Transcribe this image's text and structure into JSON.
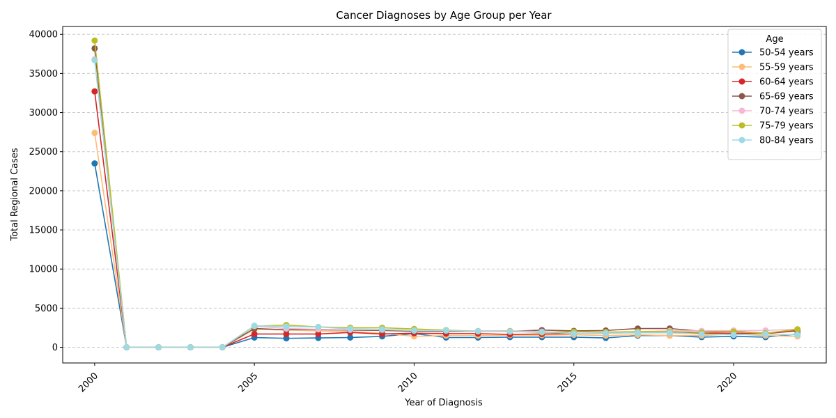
{
  "chart_data": {
    "type": "line",
    "title": "Cancer Diagnoses by Age Group per Year",
    "xlabel": "Year of Diagnosis",
    "ylabel": "Total Regional Cases",
    "x": [
      2000,
      2001,
      2002,
      2003,
      2004,
      2005,
      2006,
      2007,
      2008,
      2009,
      2010,
      2011,
      2012,
      2013,
      2014,
      2015,
      2016,
      2017,
      2018,
      2019,
      2020,
      2021,
      2022
    ],
    "xticks": [
      "2000",
      "2005",
      "2010",
      "2015",
      "2020"
    ],
    "xtick_values": [
      2000,
      2005,
      2010,
      2015,
      2020
    ],
    "yticks": [
      "0",
      "5000",
      "10000",
      "15000",
      "20000",
      "25000",
      "30000",
      "35000",
      "40000"
    ],
    "ytick_values": [
      0,
      5000,
      10000,
      15000,
      20000,
      25000,
      30000,
      35000,
      40000
    ],
    "xlim": [
      1999.0,
      2022.9
    ],
    "ylim": [
      -2000,
      41000
    ],
    "grid": "horizontal-dashed",
    "legend_title": "Age",
    "legend_position": "top-right",
    "series": [
      {
        "name": "50-54 years",
        "color": "#1f77b4",
        "values": [
          23500,
          0,
          0,
          0,
          0,
          1250,
          1150,
          1200,
          1250,
          1400,
          1750,
          1250,
          1250,
          1300,
          1300,
          1300,
          1200,
          1500,
          1500,
          1300,
          1400,
          1300,
          1700
        ]
      },
      {
        "name": "55-59 years",
        "color": "#ffbb78",
        "values": [
          27400,
          0,
          0,
          0,
          0,
          2300,
          2200,
          2100,
          2000,
          1800,
          1400,
          1500,
          1500,
          1550,
          1550,
          1600,
          1500,
          1600,
          1500,
          1500,
          1700,
          1500,
          1400
        ]
      },
      {
        "name": "60-64 years",
        "color": "#d62728",
        "values": [
          32700,
          0,
          0,
          0,
          0,
          1700,
          1700,
          1700,
          1900,
          1700,
          1800,
          1750,
          1750,
          1650,
          1700,
          1750,
          1800,
          1900,
          1850,
          1800,
          1800,
          1750,
          2100
        ]
      },
      {
        "name": "65-69 years",
        "color": "#8c564b",
        "values": [
          38200,
          0,
          0,
          0,
          0,
          2400,
          2250,
          2250,
          2200,
          2150,
          2050,
          2050,
          2050,
          2050,
          2200,
          2100,
          2150,
          2400,
          2400,
          2050,
          2050,
          1800,
          2200
        ]
      },
      {
        "name": "70-74 years",
        "color": "#f7b6d2",
        "values": [
          36800,
          0,
          0,
          0,
          0,
          2700,
          2400,
          2300,
          2250,
          2250,
          2150,
          2150,
          2100,
          2100,
          2000,
          1800,
          1800,
          2000,
          2100,
          2100,
          2150,
          2150,
          2300
        ]
      },
      {
        "name": "75-79 years",
        "color": "#bcbd22",
        "values": [
          39200,
          0,
          0,
          0,
          0,
          2700,
          2850,
          2600,
          2500,
          2500,
          2350,
          2200,
          2050,
          2050,
          1900,
          2000,
          1950,
          2000,
          2000,
          1900,
          2000,
          1800,
          2300
        ]
      },
      {
        "name": "80-84 years",
        "color": "#9edae5",
        "values": [
          36700,
          0,
          0,
          0,
          0,
          2750,
          2650,
          2600,
          2350,
          2300,
          2150,
          2150,
          2050,
          2000,
          1950,
          1750,
          1800,
          1850,
          1850,
          1700,
          1600,
          1700,
          1600
        ]
      }
    ]
  }
}
